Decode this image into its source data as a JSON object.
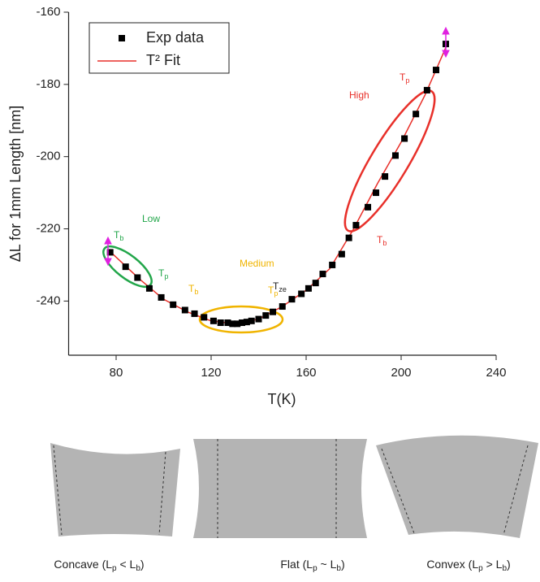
{
  "chart_data": {
    "type": "scatter",
    "y_label": "ΔL for 1mm Length [nm]",
    "x_label": "T(K)",
    "xlim": [
      60,
      240
    ],
    "xticks": [
      80,
      120,
      160,
      200,
      240
    ],
    "ylim": [
      -255,
      -160
    ],
    "yticks": [
      -240,
      -220,
      -200,
      -180,
      -160
    ],
    "series": [
      {
        "name": "Exp data",
        "type": "scatter",
        "color": "#000000",
        "x": [
          77.5,
          84,
          89,
          94,
          99,
          104,
          109,
          113,
          117,
          121,
          124,
          127,
          129,
          131,
          133,
          135,
          137,
          140,
          143,
          146,
          150,
          154,
          158,
          161,
          164,
          167,
          171,
          175,
          178,
          181,
          186,
          189.4,
          193.2,
          197.6,
          201.4,
          206.2,
          210.9,
          214.7,
          218.8
        ],
        "values": [
          -226.5,
          -230.5,
          -233.5,
          -236.5,
          -239,
          -241,
          -242.5,
          -243.5,
          -244.5,
          -245.5,
          -246,
          -246,
          -246.3,
          -246.3,
          -246,
          -245.8,
          -245.5,
          -245,
          -244,
          -243,
          -241.5,
          -239.5,
          -238,
          -236.5,
          -235,
          -232.5,
          -230,
          -227,
          -222.5,
          -219,
          -214,
          -210,
          -205.5,
          -199.7,
          -195,
          -188.2,
          -181.6,
          -176,
          -168.8
        ]
      },
      {
        "name": "T² Fit",
        "type": "line",
        "color": "#e8302a",
        "x": [
          77,
          90,
          100,
          110,
          120,
          130,
          140,
          150,
          160,
          170,
          180,
          190,
          200,
          210,
          220
        ],
        "values": [
          -226,
          -234,
          -239.5,
          -243,
          -245.5,
          -246.3,
          -245,
          -241.5,
          -237,
          -231,
          -220,
          -207.5,
          -196,
          -183,
          -168
        ]
      }
    ],
    "annotations": [
      {
        "text": "Low",
        "color": "#22a64a"
      },
      {
        "text": "T",
        "sub": "b",
        "color": "#22a64a"
      },
      {
        "text": "T",
        "sub": "p",
        "color": "#22a64a"
      },
      {
        "text": "Medium",
        "color": "#f0b400"
      },
      {
        "text": "T",
        "sub": "b",
        "color": "#f0b400"
      },
      {
        "text": "T",
        "sub": "ze",
        "color": "#222222"
      },
      {
        "text": "T",
        "sub": "p",
        "color": "#f0b400"
      },
      {
        "text": "High",
        "color": "#e8302a"
      },
      {
        "text": "T",
        "sub": "p",
        "color": "#e8302a"
      },
      {
        "text": "T",
        "sub": "b",
        "color": "#e8302a"
      }
    ],
    "captions": [
      [
        "Concave (L",
        "p",
        " < L",
        "b",
        ")"
      ],
      [
        "Flat (L",
        "p",
        " ~ L",
        "b",
        ")"
      ],
      [
        "Convex (L",
        "p",
        " > L",
        "b",
        ")"
      ]
    ]
  }
}
